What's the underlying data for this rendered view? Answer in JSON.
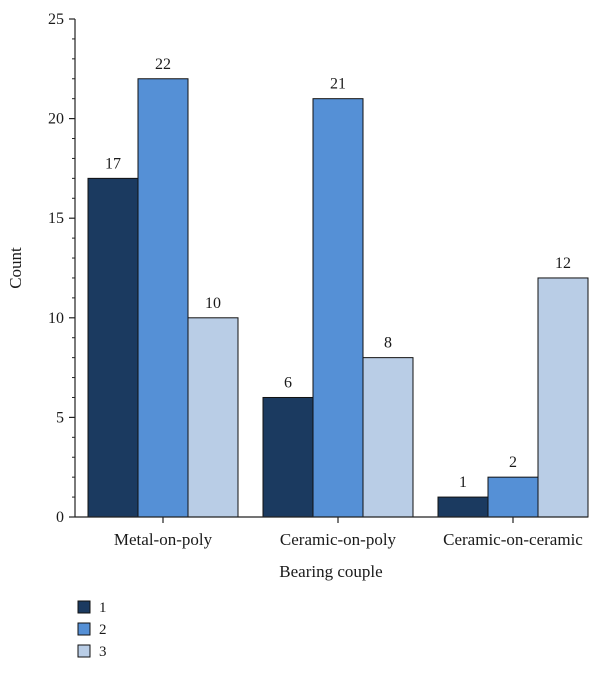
{
  "chart_data": {
    "type": "bar",
    "title": "",
    "xlabel": "Bearing couple",
    "ylabel": "Count",
    "ylim": [
      0,
      25
    ],
    "yticks": [
      0,
      5,
      10,
      15,
      20,
      25
    ],
    "grid": false,
    "legend_position": "bottom-left",
    "categories": [
      "Metal-on-poly",
      "Ceramic-on-poly",
      "Ceramic-on-ceramic"
    ],
    "series": [
      {
        "name": "1",
        "color": "#1b3a60",
        "values": [
          17,
          6,
          1
        ]
      },
      {
        "name": "2",
        "color": "#5590d6",
        "values": [
          22,
          21,
          2
        ]
      },
      {
        "name": "3",
        "color": "#b9cde6",
        "values": [
          10,
          8,
          12
        ]
      }
    ]
  }
}
